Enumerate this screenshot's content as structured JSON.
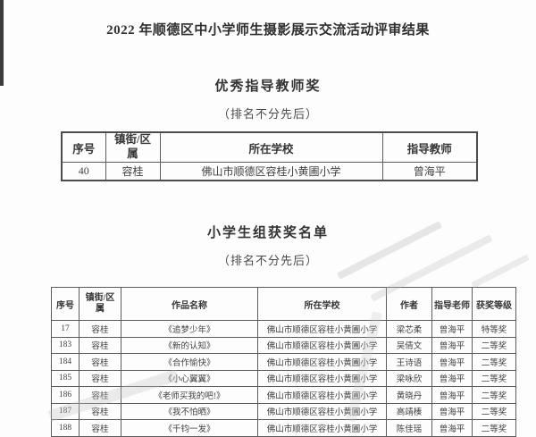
{
  "doc": {
    "title": "2022 年顺德区中小学师生摄影展示交流活动评审结果",
    "teacher_section": {
      "heading": "优秀指导教师奖",
      "note": "（排名不分先后）",
      "headers": [
        "序号",
        "镇街/区属",
        "所在学校",
        "指导教师"
      ],
      "rows": [
        [
          "40",
          "容桂",
          "佛山市顺德区容桂小黄圃小学",
          "曾海平"
        ]
      ]
    },
    "student_section": {
      "heading": "小学生组获奖名单",
      "note": "（排名不分先后）",
      "headers": [
        "序号",
        "镇街/区属",
        "作品名称",
        "所在学校",
        "作者",
        "指导老师",
        "获奖等级"
      ],
      "rows": [
        [
          "17",
          "容桂",
          "《追梦少年》",
          "佛山市顺德区容桂小黄圃小学",
          "梁芯柔",
          "曾海平",
          "特等奖"
        ],
        [
          "183",
          "容桂",
          "《新的认知》",
          "佛山市顺德区容桂小黄圃小学",
          "吴倩文",
          "曾海平",
          "二等奖"
        ],
        [
          "184",
          "容桂",
          "《合作愉快》",
          "佛山市顺德区容桂小黄圃小学",
          "王诗语",
          "曾海平",
          "二等奖"
        ],
        [
          "185",
          "容桂",
          "《小心翼翼》",
          "佛山市顺德区容桂小黄圃小学",
          "梁咏欣",
          "曾海平",
          "二等奖"
        ],
        [
          "186",
          "容桂",
          "《老师买我的吧!》",
          "佛山市顺德区容桂小黄圃小学",
          "黄晓丹",
          "曾海平",
          "二等奖"
        ],
        [
          "187",
          "容桂",
          "《我不怕晒》",
          "佛山市顺德区容桂小黄圃小学",
          "高靖楱",
          "曾海平",
          "二等奖"
        ],
        [
          "188",
          "容桂",
          "《千钧一发》",
          "佛山市顺德区容桂小黄圃小学",
          "陈佳瑶",
          "曾海平",
          "二等奖"
        ]
      ]
    }
  }
}
